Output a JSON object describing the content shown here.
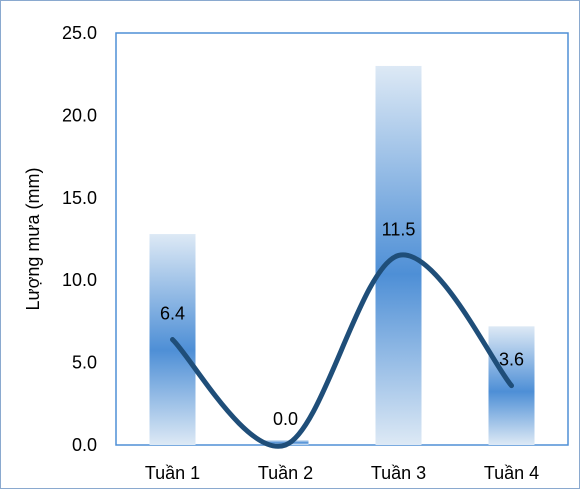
{
  "chart_data": {
    "type": "bar",
    "categories": [
      "Tuần 1",
      "Tuần 2",
      "Tuần 3",
      "Tuần 4"
    ],
    "series": [
      {
        "type": "bar",
        "values": [
          12.8,
          0.3,
          23.0,
          7.2
        ]
      },
      {
        "type": "line",
        "values": [
          6.4,
          0.0,
          11.5,
          3.6
        ],
        "labels": [
          "6.4",
          "0.0",
          "11.5",
          "3.6"
        ]
      }
    ],
    "title": "",
    "xlabel": "",
    "ylabel": "Lượng mưa (mm)",
    "ylim": [
      0,
      25
    ],
    "yticks": [
      "0.0",
      "5.0",
      "10.0",
      "15.0",
      "20.0",
      "25.0"
    ],
    "grid": false,
    "legend": "none",
    "colors": {
      "bar_top": "#dde9f5",
      "bar_mid": "#4e8fd6",
      "line": "#1f4e79",
      "frame": "#8aa9cf",
      "plot_border": "#4f8fd6"
    }
  }
}
